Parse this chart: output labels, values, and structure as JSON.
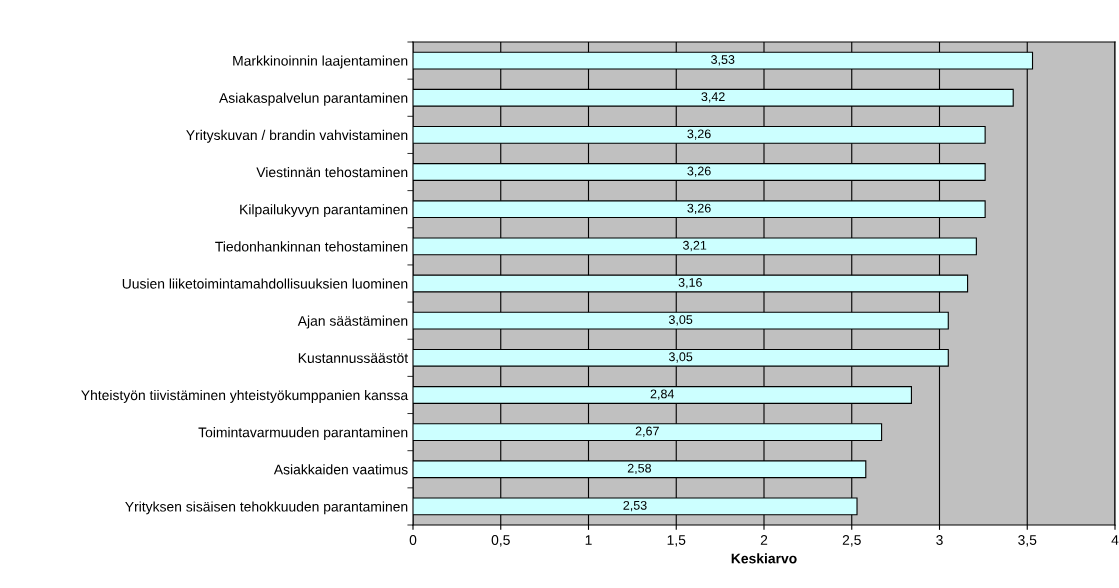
{
  "chart_data": {
    "type": "bar",
    "orientation": "horizontal",
    "xlabel": "Keskiarvo",
    "categories": [
      "Markkinoinnin laajentaminen",
      "Asiakaspalvelun parantaminen",
      "Yrityskuvan / brandin vahvistaminen",
      "Viestinnän tehostaminen",
      "Kilpailukyvyn parantaminen",
      "Tiedonhankinnan tehostaminen",
      "Uusien liiketoimintamahdollisuuksien luominen",
      "Ajan säästäminen",
      "Kustannussäästöt",
      "Yhteistyön tiivistäminen yhteistyökumppanien kanssa",
      "Toimintavarmuuden parantaminen",
      "Asiakkaiden vaatimus",
      "Yrityksen sisäisen tehokkuuden parantaminen"
    ],
    "values": [
      3.53,
      3.42,
      3.26,
      3.26,
      3.26,
      3.21,
      3.16,
      3.05,
      3.05,
      2.84,
      2.67,
      2.58,
      2.53
    ],
    "value_labels": [
      "3,53",
      "3,42",
      "3,26",
      "3,26",
      "3,26",
      "3,21",
      "3,16",
      "3,05",
      "3,05",
      "2,84",
      "2,67",
      "2,58",
      "2,53"
    ],
    "color": "#ccffff",
    "xlim": [
      0,
      4
    ],
    "xticks": [
      0,
      {
        "value": 0.5,
        "label": "0,5"
      },
      1,
      {
        "value": 1.5,
        "label": "1,5"
      },
      2,
      {
        "value": 2.5,
        "label": "2,5"
      },
      3,
      {
        "value": 3.5,
        "label": "3,5"
      },
      4
    ],
    "grid": "x",
    "legend": false
  }
}
